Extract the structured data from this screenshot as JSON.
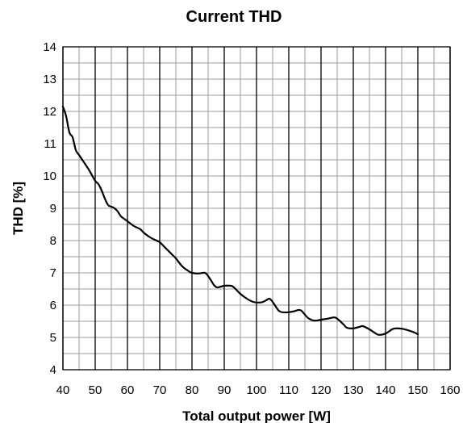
{
  "chart_data": {
    "type": "line",
    "title": "Current THD",
    "xlabel": "Total output power [W]",
    "ylabel": "THD [%]",
    "xlim": [
      40,
      160
    ],
    "ylim": [
      4,
      14
    ],
    "x_major_step": 10,
    "x_minor_step": 5,
    "y_major_step": 1,
    "y_minor_step": 0.5,
    "x_ticks": [
      40,
      50,
      60,
      70,
      80,
      90,
      100,
      110,
      120,
      130,
      140,
      150,
      160
    ],
    "y_ticks": [
      4,
      5,
      6,
      7,
      8,
      9,
      10,
      11,
      12,
      13,
      14
    ],
    "grid": true,
    "legend": "none",
    "series": [
      {
        "color": "#000000",
        "x": [
          40,
          41,
          42,
          43,
          44,
          45,
          46,
          48,
          50,
          51,
          52,
          53,
          54,
          55,
          56,
          57,
          58,
          60,
          62,
          64,
          65,
          67,
          69,
          70,
          72,
          74,
          75,
          77,
          79,
          80,
          82,
          84,
          85,
          86,
          87,
          88,
          90,
          92,
          93,
          95,
          97,
          99,
          101,
          102,
          103,
          104,
          105,
          106,
          107,
          108,
          110,
          112,
          113,
          114,
          116,
          118,
          120,
          122,
          124,
          125,
          127,
          128,
          130,
          132,
          133,
          135,
          137,
          138,
          140,
          142,
          143,
          145,
          147,
          149,
          150
        ],
        "y": [
          12.15,
          11.85,
          11.35,
          11.2,
          10.8,
          10.65,
          10.5,
          10.2,
          9.85,
          9.75,
          9.55,
          9.3,
          9.1,
          9.05,
          9.0,
          8.9,
          8.75,
          8.6,
          8.45,
          8.35,
          8.25,
          8.1,
          8.0,
          7.95,
          7.75,
          7.55,
          7.45,
          7.2,
          7.05,
          7.0,
          6.98,
          7.0,
          6.9,
          6.75,
          6.6,
          6.55,
          6.6,
          6.6,
          6.55,
          6.35,
          6.2,
          6.1,
          6.08,
          6.1,
          6.15,
          6.2,
          6.1,
          5.95,
          5.82,
          5.78,
          5.78,
          5.82,
          5.85,
          5.82,
          5.6,
          5.52,
          5.55,
          5.58,
          5.62,
          5.58,
          5.4,
          5.3,
          5.28,
          5.33,
          5.35,
          5.25,
          5.12,
          5.08,
          5.12,
          5.25,
          5.28,
          5.27,
          5.22,
          5.15,
          5.1
        ]
      }
    ]
  }
}
